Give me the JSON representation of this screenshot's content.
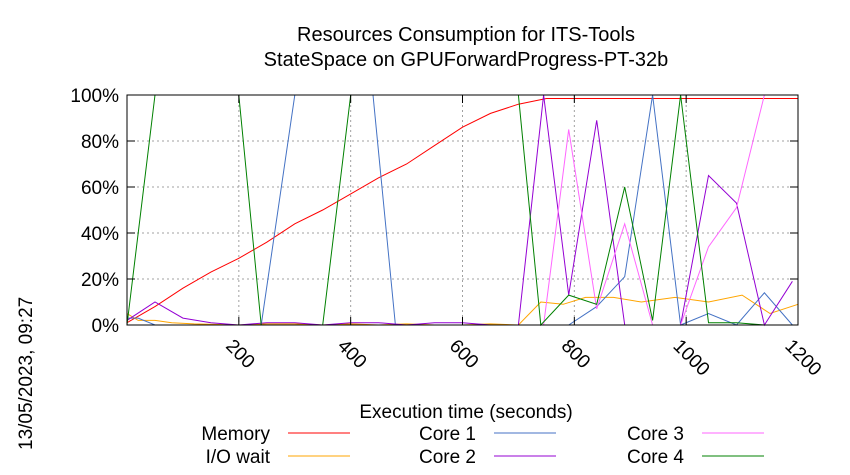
{
  "side_label": "13/05/2023, 09:27",
  "chart_data": {
    "type": "line",
    "title": [
      "Resources Consumption for ITS-Tools",
      "StateSpace on GPUForwardProgress-PT-32b"
    ],
    "xlabel": "Execution time (seconds)",
    "ylabel": "",
    "xlim": [
      0,
      1200
    ],
    "ylim": [
      0,
      100
    ],
    "x_ticks": [
      200,
      400,
      600,
      800,
      1000,
      1200
    ],
    "y_ticks": [
      0,
      20,
      40,
      60,
      80,
      100
    ],
    "y_tick_labels": [
      "0%",
      "20%",
      "40%",
      "60%",
      "80%",
      "100%"
    ],
    "grid": true,
    "legend_position": "bottom",
    "series": [
      {
        "name": "Memory",
        "color": "#ff0000",
        "x": [
          0,
          50,
          100,
          150,
          200,
          250,
          300,
          350,
          400,
          450,
          500,
          550,
          600,
          650,
          700,
          750,
          800,
          850,
          900,
          950,
          1000,
          1050,
          1100,
          1150,
          1200
        ],
        "y": [
          1,
          8,
          16,
          23,
          29,
          36,
          44,
          50,
          57,
          64,
          70,
          78,
          86,
          92,
          96,
          98.5,
          98.5,
          98.5,
          98.5,
          98.5,
          98.5,
          98.5,
          98.5,
          98.5,
          98.5
        ]
      },
      {
        "name": "I/O wait",
        "color": "#ffa500",
        "x": [
          0,
          20,
          50,
          80,
          120,
          200,
          250,
          300,
          350,
          400,
          450,
          500,
          550,
          600,
          650,
          700,
          740,
          780,
          820,
          870,
          920,
          980,
          1040,
          1100,
          1150,
          1200
        ],
        "y": [
          5,
          2,
          2,
          1,
          0.5,
          0,
          0.5,
          0.5,
          0,
          0.5,
          0,
          0.5,
          0,
          0,
          0.5,
          0,
          10,
          9,
          12,
          12,
          10,
          12,
          10,
          13,
          5,
          9
        ]
      },
      {
        "name": "Core 1",
        "color": "#4472c4",
        "x": [
          0,
          20,
          50,
          200,
          240,
          300,
          350,
          400,
          440,
          480,
          550,
          700,
          750,
          790,
          840,
          890,
          940,
          990,
          1040,
          1090,
          1140,
          1190
        ],
        "y": [
          3,
          3,
          0,
          0,
          0,
          100,
          100,
          100,
          100,
          0,
          0,
          0,
          0,
          0,
          8,
          21,
          100,
          0,
          5,
          0,
          14,
          0
        ]
      },
      {
        "name": "Core 2",
        "color": "#9400d3",
        "x": [
          0,
          50,
          100,
          150,
          200,
          250,
          300,
          350,
          400,
          450,
          500,
          550,
          600,
          650,
          700,
          745,
          790,
          840,
          890,
          940,
          990,
          1040,
          1090,
          1140,
          1190
        ],
        "y": [
          2,
          10,
          3,
          1,
          0,
          1,
          1,
          0,
          1,
          1,
          0,
          1,
          1,
          0,
          0,
          100,
          13,
          89,
          0,
          0,
          0,
          65,
          53,
          0,
          19
        ]
      },
      {
        "name": "Core 3",
        "color": "#ff66ff",
        "x": [
          0,
          50,
          100,
          700,
          745,
          790,
          840,
          890,
          940,
          990,
          1040,
          1090,
          1140,
          1190
        ],
        "y": [
          0,
          0,
          0,
          0,
          0,
          85,
          7,
          44,
          0,
          0,
          34,
          51,
          100,
          100
        ]
      },
      {
        "name": "Core 4",
        "color": "#008000",
        "x": [
          0,
          50,
          100,
          150,
          200,
          240,
          300,
          350,
          400,
          440,
          480,
          550,
          600,
          650,
          700,
          740,
          790,
          840,
          890,
          940,
          990,
          1040,
          1090,
          1140
        ],
        "y": [
          0,
          100,
          100,
          100,
          100,
          0,
          0,
          0,
          100,
          100,
          100,
          100,
          100,
          100,
          100,
          0,
          13,
          9,
          60,
          2,
          100,
          1,
          1,
          0
        ]
      }
    ]
  }
}
